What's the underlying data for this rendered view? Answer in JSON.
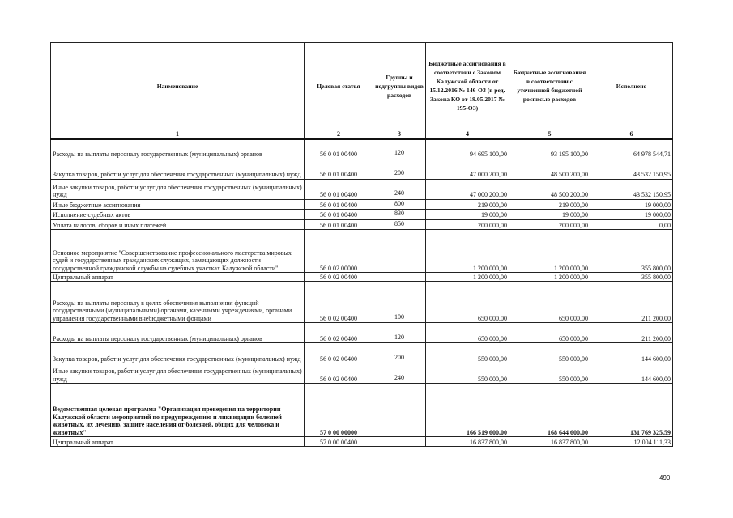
{
  "headers": [
    "Наименование",
    "Целевая статья",
    "Группы и подгруппы видов расходов",
    "Бюджетные ассигнования в соответствии с Законом Калужской области от 15.12.2016 № 146-ОЗ (в ред. Закона КО от 19.05.2017 № 195-ОЗ)",
    "Бюджетные ассигнования в соответствии с уточненной бюджетной росписью расходов",
    "Исполнено"
  ],
  "column_numbers": [
    "1",
    "2",
    "3",
    "4",
    "5",
    "6"
  ],
  "rows": [
    {
      "name": "Расходы на выплаты персоналу государственных (муниципальных) органов",
      "code": "56 0 01 00400",
      "group": "120",
      "law": "94 695 100,00",
      "plan": "93 195 100,00",
      "done": "64 978 544,71"
    },
    {
      "name": "Закупка товаров, работ и услуг для обеспечения государственных (муниципальных) нужд",
      "code": "56 0 01 00400",
      "group": "200",
      "law": "47 000 200,00",
      "plan": "48 500 200,00",
      "done": "43 532 150,95"
    },
    {
      "name": "Иные закупки товаров, работ и услуг для обеспечения государственных (муниципальных) нужд",
      "code": "56 0 01 00400",
      "group": "240",
      "law": "47 000 200,00",
      "plan": "48 500 200,00",
      "done": "43 532 150,95"
    },
    {
      "name": "Иные бюджетные ассигнования",
      "code": "56 0 01 00400",
      "group": "800",
      "law": "219 000,00",
      "plan": "219 000,00",
      "done": "19 000,00"
    },
    {
      "name": "Исполнение судебных актов",
      "code": "56 0 01 00400",
      "group": "830",
      "law": "19 000,00",
      "plan": "19 000,00",
      "done": "19 000,00"
    },
    {
      "name": "Уплата налогов, сборов и иных платежей",
      "code": "56 0 01 00400",
      "group": "850",
      "law": "200 000,00",
      "plan": "200 000,00",
      "done": "0,00"
    },
    {
      "name": "Основное мероприятие \"Совершенствование профессионального мастерства мировых судей и государственных гражданских служащих, замещающих должности государственной гражданской службы на судебных участках Калужской области\"",
      "code": "56 0 02 00000",
      "group": "",
      "law": "1 200 000,00",
      "plan": "1 200 000,00",
      "done": "355 800,00"
    },
    {
      "name": "Центральный аппарат",
      "code": "56 0 02 00400",
      "group": "",
      "law": "1 200 000,00",
      "plan": "1 200 000,00",
      "done": "355 800,00"
    },
    {
      "name": "Расходы на выплаты персоналу в целях обеспечения выполнения функций государственными (муниципальными) органами, казенными учреждениями, органами управления государственными внебюджетными фондами",
      "code": "56 0 02 00400",
      "group": "100",
      "law": "650 000,00",
      "plan": "650 000,00",
      "done": "211 200,00"
    },
    {
      "name": "Расходы на выплаты персоналу государственных (муниципальных) органов",
      "code": "56 0 02 00400",
      "group": "120",
      "law": "650 000,00",
      "plan": "650 000,00",
      "done": "211 200,00"
    },
    {
      "name": "Закупка товаров, работ и услуг для обеспечения государственных (муниципальных) нужд",
      "code": "56 0 02 00400",
      "group": "200",
      "law": "550 000,00",
      "plan": "550 000,00",
      "done": "144 600,00"
    },
    {
      "name": "Иные закупки товаров, работ и услуг для обеспечения государственных (муниципальных) нужд",
      "code": "56 0 02 00400",
      "group": "240",
      "law": "550 000,00",
      "plan": "550 000,00",
      "done": "144 600,00"
    },
    {
      "name": "Ведомственная целевая программа \"Организация проведения на территории Калужской области мероприятий по предупреждению и ликвидации болезней животных, их лечению, защите населения от болезней, общих для человека и животных\"",
      "code": "57 0 00 00000",
      "group": "",
      "law": "166 519 600,00",
      "plan": "168 644 600,00",
      "done": "131 769 325,59",
      "bold": true
    },
    {
      "name": "Центральный аппарат",
      "code": "57 0 00 00400",
      "group": "",
      "law": "16 837 800,00",
      "plan": "16 837 800,00",
      "done": "12 004 111,33"
    }
  ],
  "page_number": "490"
}
